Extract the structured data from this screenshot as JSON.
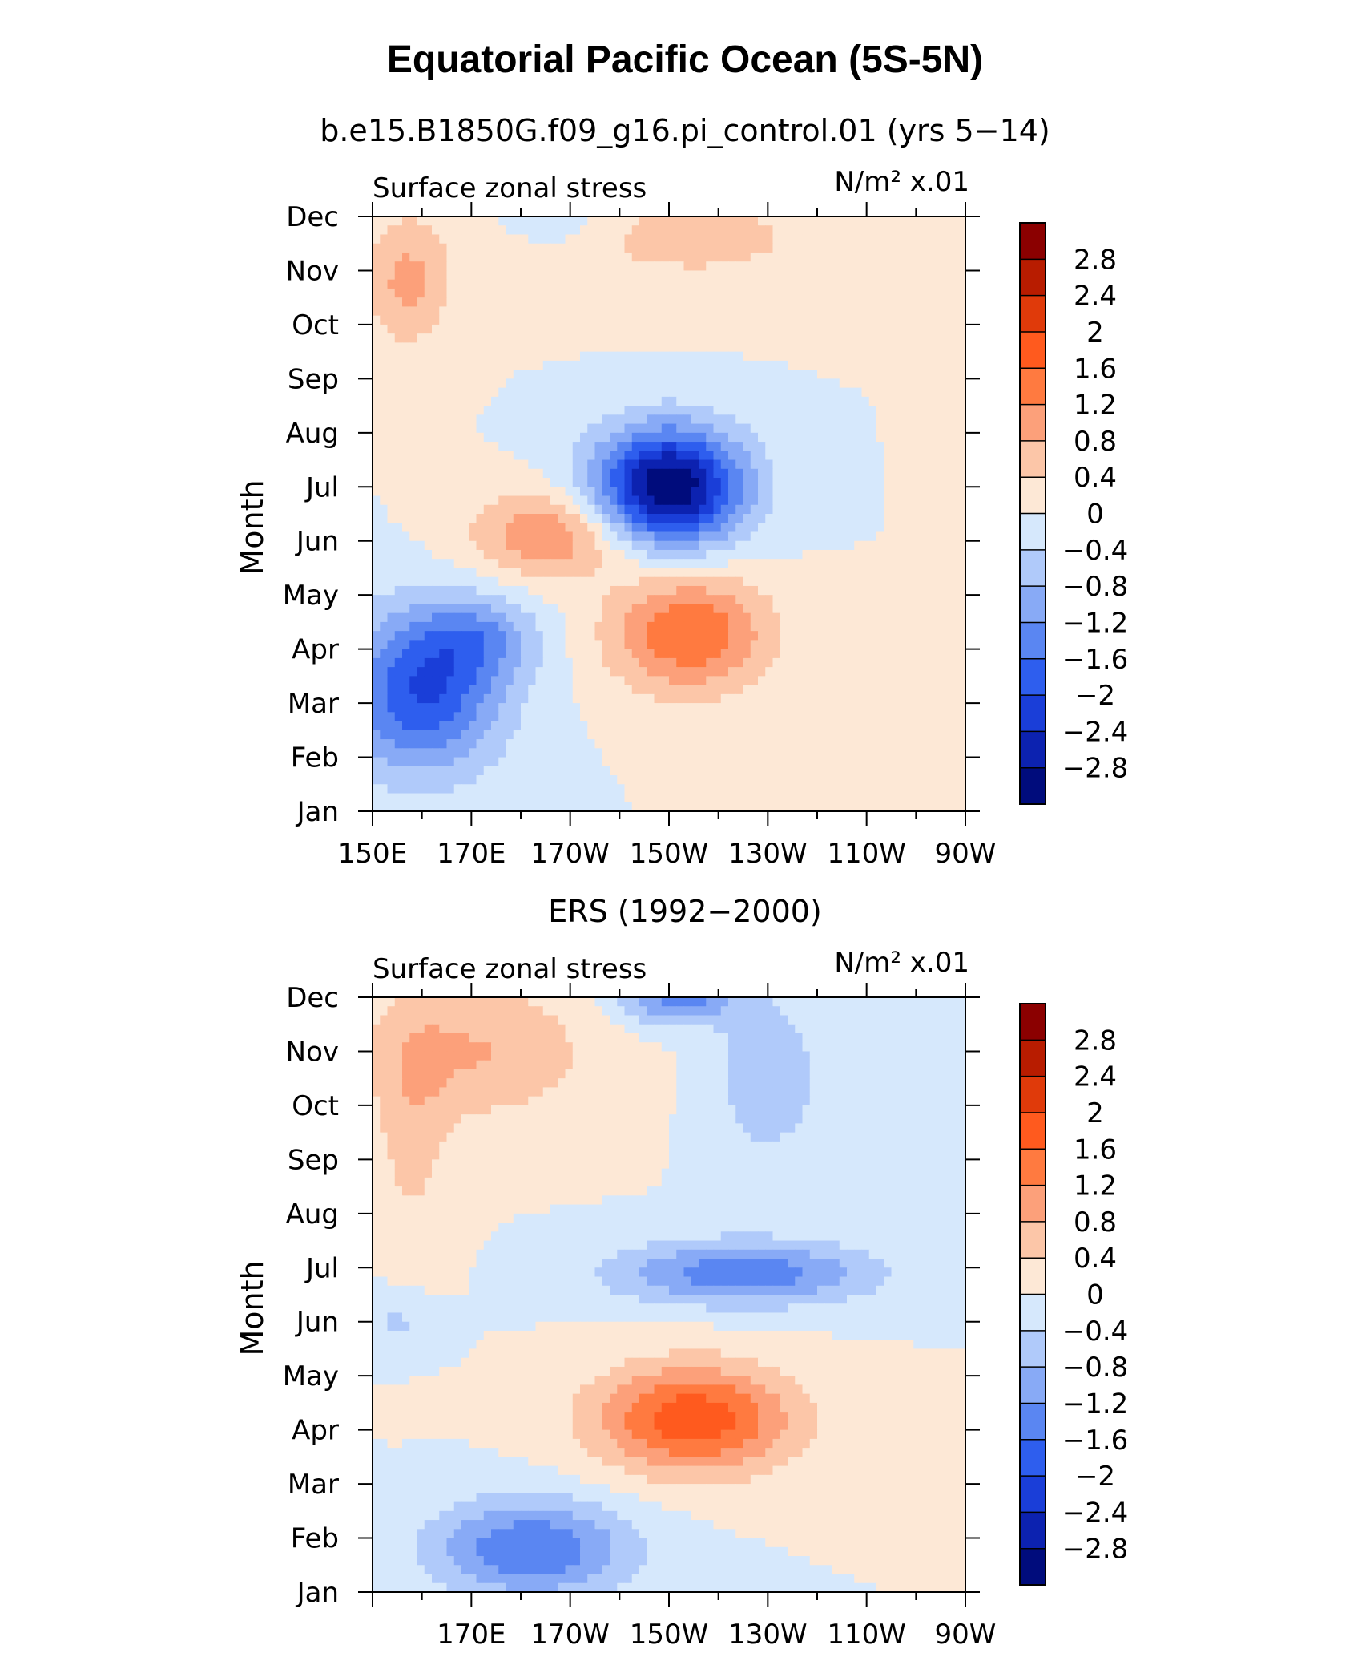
{
  "figure": {
    "title": "Equatorial Pacific Ocean (5S-5N)"
  },
  "colorbar": {
    "labels": [
      "2.8",
      "2.4",
      "2",
      "1.6",
      "1.2",
      "0.8",
      "0.4",
      "0",
      "−0.4",
      "−0.8",
      "−1.2",
      "−1.6",
      "−2",
      "−2.4",
      "−2.8"
    ],
    "colors": [
      "#8b0000",
      "#b81c00",
      "#e03a0a",
      "#ff5a1e",
      "#ff7a40",
      "#fca07a",
      "#fcc6a8",
      "#fde8d6",
      "#d6e8fc",
      "#b0cafa",
      "#88aaf6",
      "#5a86f2",
      "#2e5eee",
      "#1a3ed8",
      "#0c22b0",
      "#000c7c"
    ]
  },
  "chart_data": [
    {
      "type": "heatmap",
      "title": "b.e15.B1850G.f09_g16.pi_control.01 (yrs 5−14)",
      "left_label": "Surface zonal stress",
      "right_label": "N/m² x.01",
      "ylabel": "Month",
      "xlim": [
        150,
        270
      ],
      "x_tick_labels": [
        "150E",
        "170E",
        "170W",
        "150W",
        "130W",
        "110W",
        "90W"
      ],
      "y_tick_labels": [
        "Jan",
        "Feb",
        "Mar",
        "Apr",
        "May",
        "Jun",
        "Jul",
        "Aug",
        "Sep",
        "Oct",
        "Nov",
        "Dec"
      ],
      "levels": [
        -2.8,
        -2.4,
        -2,
        -1.6,
        -1.2,
        -0.8,
        -0.4,
        0,
        0.4,
        0.8,
        1.2,
        1.6,
        2,
        2.4,
        2.8
      ],
      "features": [
        {
          "x": 210,
          "y": 6.0,
          "amp": -3.2,
          "sx": 15,
          "sy": 1.1
        },
        {
          "x": 160,
          "y": 2.2,
          "amp": -2.0,
          "sx": 16,
          "sy": 1.5
        },
        {
          "x": 172,
          "y": 3.2,
          "amp": -0.9,
          "sx": 12,
          "sy": 0.8
        },
        {
          "x": 214,
          "y": 3.3,
          "amp": 1.6,
          "sx": 16,
          "sy": 1.1
        },
        {
          "x": 186,
          "y": 5.1,
          "amp": 1.2,
          "sx": 16,
          "sy": 0.8
        },
        {
          "x": 157,
          "y": 9.8,
          "amp": 0.9,
          "sx": 9,
          "sy": 1.2
        },
        {
          "x": 215,
          "y": 10.6,
          "amp": 0.5,
          "sx": 35,
          "sy": 1.1
        },
        {
          "x": 187,
          "y": 11.0,
          "amp": -0.6,
          "sx": 9,
          "sy": 0.5
        },
        {
          "x": 268,
          "y": 8.0,
          "amp": 0.4,
          "sx": 6,
          "sy": 2.5
        }
      ]
    },
    {
      "type": "heatmap",
      "title": "ERS (1992−2000)",
      "left_label": "Surface zonal stress",
      "right_label": "N/m² x.01",
      "ylabel": "Month",
      "xlim": [
        150,
        270
      ],
      "x_tick_labels": [
        "170E",
        "170W",
        "150W",
        "130W",
        "110W",
        "90W"
      ],
      "y_tick_labels": [
        "Jan",
        "Feb",
        "Mar",
        "Apr",
        "May",
        "Jun",
        "Jul",
        "Aug",
        "Sep",
        "Oct",
        "Nov",
        "Dec"
      ],
      "levels": [
        -2.8,
        -2.4,
        -2,
        -1.6,
        -1.2,
        -0.8,
        -0.4,
        0,
        0.4,
        0.8,
        1.2,
        1.6,
        2,
        2.4,
        2.8
      ],
      "features": [
        {
          "x": 182,
          "y": 0.8,
          "amp": -1.6,
          "sx": 20,
          "sy": 0.9
        },
        {
          "x": 225,
          "y": 5.9,
          "amp": -1.5,
          "sx": 26,
          "sy": 0.6
        },
        {
          "x": 212,
          "y": 11.0,
          "amp": -1.4,
          "sx": 12,
          "sy": 0.5
        },
        {
          "x": 230,
          "y": 9.5,
          "amp": -0.8,
          "sx": 10,
          "sy": 1.4
        },
        {
          "x": 215,
          "y": 3.2,
          "amp": 1.9,
          "sx": 20,
          "sy": 1.0
        },
        {
          "x": 172,
          "y": 10.0,
          "amp": 0.8,
          "sx": 22,
          "sy": 1.3
        },
        {
          "x": 158,
          "y": 8.5,
          "amp": 0.5,
          "sx": 8,
          "sy": 2.5
        },
        {
          "x": 155,
          "y": 5.0,
          "amp": -0.5,
          "sx": 8,
          "sy": 0.6
        }
      ]
    }
  ]
}
